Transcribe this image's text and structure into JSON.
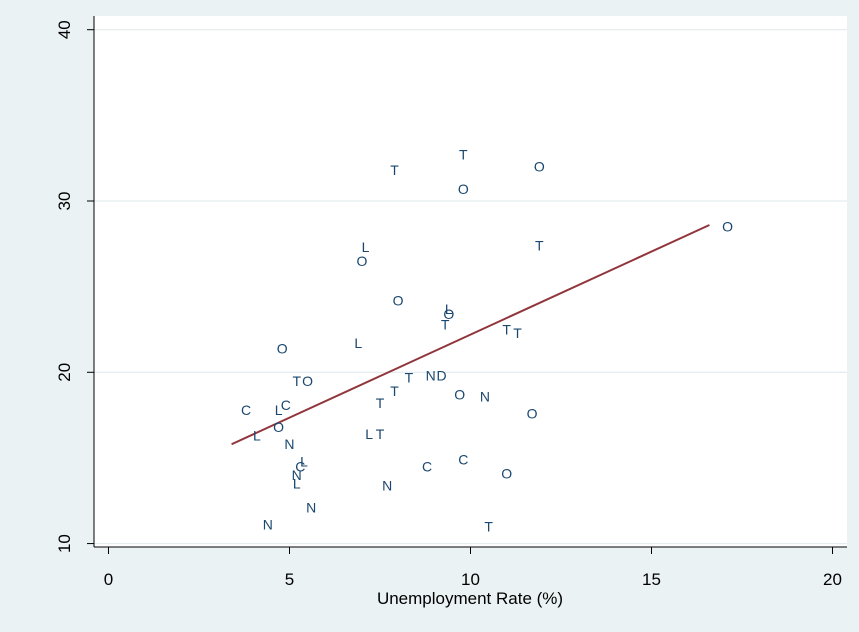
{
  "chart_data": {
    "type": "scatter",
    "title": "",
    "xlabel": "Unemployment Rate (%)",
    "ylabel": "",
    "xlim": [
      -0.4,
      20.4
    ],
    "ylim": [
      9.8,
      40.8
    ],
    "x_ticks": [
      0,
      5,
      10,
      15,
      20
    ],
    "y_ticks": [
      10,
      20,
      30,
      40
    ],
    "grid": true,
    "marker_color": "#1a476f",
    "fit_color": "#90353b",
    "series": [
      {
        "points": [
          {
            "x": 7.9,
            "y": 31.8,
            "label": "T"
          },
          {
            "x": 9.8,
            "y": 32.7,
            "label": "T"
          },
          {
            "x": 11.9,
            "y": 32.0,
            "label": "O"
          },
          {
            "x": 9.8,
            "y": 30.7,
            "label": "O"
          },
          {
            "x": 17.1,
            "y": 28.5,
            "label": "O"
          },
          {
            "x": 7.1,
            "y": 27.3,
            "label": "L"
          },
          {
            "x": 7.0,
            "y": 26.5,
            "label": "O"
          },
          {
            "x": 11.9,
            "y": 27.4,
            "label": "T"
          },
          {
            "x": 8.0,
            "y": 24.2,
            "label": "O"
          },
          {
            "x": 9.4,
            "y": 23.7,
            "label": "L"
          },
          {
            "x": 9.4,
            "y": 23.4,
            "label": "O"
          },
          {
            "x": 9.3,
            "y": 22.8,
            "label": "T"
          },
          {
            "x": 11.0,
            "y": 22.5,
            "label": "T"
          },
          {
            "x": 11.3,
            "y": 22.3,
            "label": "T"
          },
          {
            "x": 4.8,
            "y": 21.4,
            "label": "O"
          },
          {
            "x": 6.9,
            "y": 21.7,
            "label": "L"
          },
          {
            "x": 5.2,
            "y": 19.5,
            "label": "T"
          },
          {
            "x": 5.5,
            "y": 19.5,
            "label": "O"
          },
          {
            "x": 8.9,
            "y": 19.8,
            "label": "N"
          },
          {
            "x": 9.2,
            "y": 19.8,
            "label": "D"
          },
          {
            "x": 8.3,
            "y": 19.7,
            "label": "T"
          },
          {
            "x": 7.9,
            "y": 18.9,
            "label": "T"
          },
          {
            "x": 7.5,
            "y": 18.2,
            "label": "T"
          },
          {
            "x": 9.7,
            "y": 18.7,
            "label": "O"
          },
          {
            "x": 10.4,
            "y": 18.6,
            "label": "N"
          },
          {
            "x": 3.8,
            "y": 17.8,
            "label": "C"
          },
          {
            "x": 4.7,
            "y": 17.8,
            "label": "L"
          },
          {
            "x": 4.9,
            "y": 18.1,
            "label": "C"
          },
          {
            "x": 11.7,
            "y": 17.6,
            "label": "O"
          },
          {
            "x": 4.7,
            "y": 16.8,
            "label": "O"
          },
          {
            "x": 4.1,
            "y": 16.3,
            "label": "L"
          },
          {
            "x": 7.2,
            "y": 16.4,
            "label": "L"
          },
          {
            "x": 7.5,
            "y": 16.4,
            "label": "T"
          },
          {
            "x": 5.0,
            "y": 15.8,
            "label": "N"
          },
          {
            "x": 5.4,
            "y": 14.8,
            "label": "L"
          },
          {
            "x": 5.3,
            "y": 14.5,
            "label": "C"
          },
          {
            "x": 5.2,
            "y": 14.0,
            "label": "N"
          },
          {
            "x": 5.2,
            "y": 13.5,
            "label": "L"
          },
          {
            "x": 8.8,
            "y": 14.5,
            "label": "C"
          },
          {
            "x": 9.8,
            "y": 14.9,
            "label": "C"
          },
          {
            "x": 11.0,
            "y": 14.1,
            "label": "O"
          },
          {
            "x": 7.7,
            "y": 13.4,
            "label": "N"
          },
          {
            "x": 5.6,
            "y": 12.1,
            "label": "N"
          },
          {
            "x": 4.4,
            "y": 11.1,
            "label": "N"
          },
          {
            "x": 10.5,
            "y": 11.0,
            "label": "T"
          }
        ]
      }
    ],
    "fit_line": {
      "x": [
        3.4,
        16.6
      ],
      "y": [
        15.8,
        28.6
      ]
    }
  }
}
